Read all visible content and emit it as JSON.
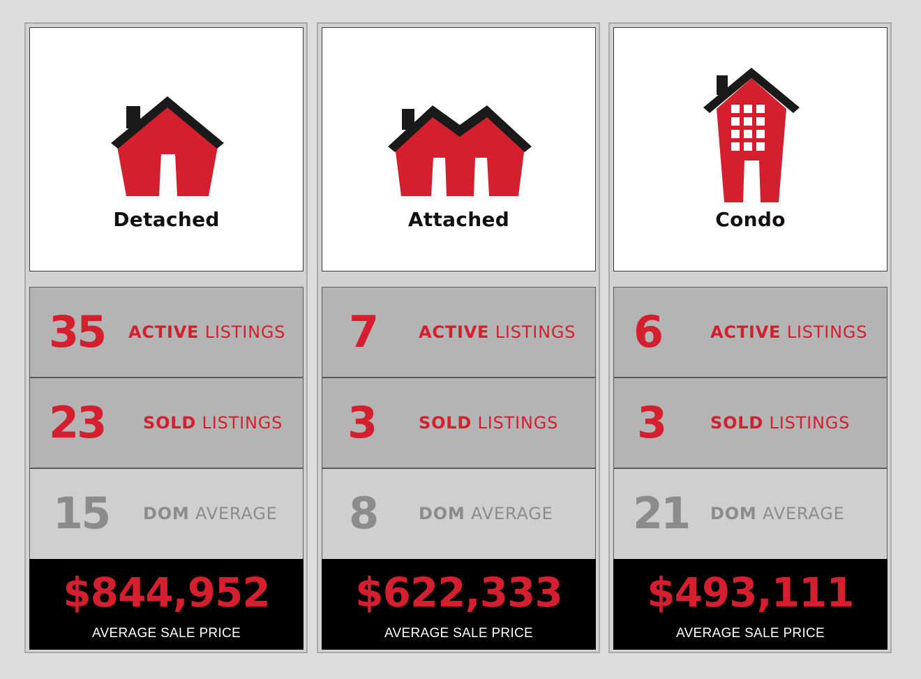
{
  "colors": {
    "accent_red": "#d4202e",
    "roof_black": "#1a1a1a",
    "muted_grey": "#8c8c8c",
    "price_bg": "#000000"
  },
  "columns": [
    {
      "type": "Detached",
      "icon": "detached-house-icon",
      "active": {
        "value": "35",
        "keyword": "ACTIVE",
        "label": "LISTINGS"
      },
      "sold": {
        "value": "23",
        "keyword": "SOLD",
        "label": "LISTINGS"
      },
      "dom": {
        "value": "15",
        "keyword": "DOM",
        "label": "AVERAGE"
      },
      "price": {
        "value": "$844,952",
        "label": "AVERAGE SALE PRICE"
      }
    },
    {
      "type": "Attached",
      "icon": "attached-house-icon",
      "active": {
        "value": "7",
        "keyword": "ACTIVE",
        "label": "LISTINGS"
      },
      "sold": {
        "value": "3",
        "keyword": "SOLD",
        "label": "LISTINGS"
      },
      "dom": {
        "value": "8",
        "keyword": "DOM",
        "label": "AVERAGE"
      },
      "price": {
        "value": "$622,333",
        "label": "AVERAGE SALE PRICE"
      }
    },
    {
      "type": "Condo",
      "icon": "condo-building-icon",
      "active": {
        "value": "6",
        "keyword": "ACTIVE",
        "label": "LISTINGS"
      },
      "sold": {
        "value": "3",
        "keyword": "SOLD",
        "label": "LISTINGS"
      },
      "dom": {
        "value": "21",
        "keyword": "DOM",
        "label": "AVERAGE"
      },
      "price": {
        "value": "$493,111",
        "label": "AVERAGE SALE PRICE"
      }
    }
  ]
}
